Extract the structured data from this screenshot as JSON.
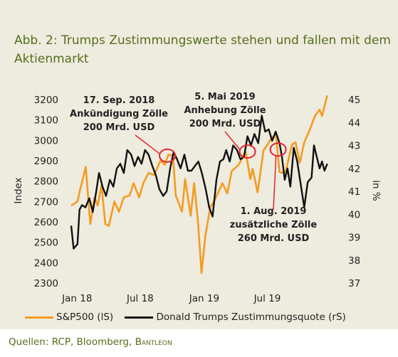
{
  "title": "Abb. 2: Trumps Zustimmungswerte stehen und fallen mit dem Aktienmarkt",
  "source_prefix": "Quellen: RCP, Bloomberg, ",
  "source_brand": "Bantleon",
  "colors": {
    "sp500": "#f39c1f",
    "approval": "#111111",
    "circle": "#e3262f",
    "title": "#566f1a",
    "panel": "#eeebdf"
  },
  "chart_data": {
    "type": "line",
    "left_axis": {
      "label": "Index",
      "ylim": [
        2300,
        3200
      ],
      "ticks": [
        "3200",
        "3100",
        "3000",
        "2900",
        "2800",
        "2700",
        "2600",
        "2500",
        "2400",
        "2300"
      ]
    },
    "right_axis": {
      "label": "in %",
      "ylim": [
        37,
        45
      ],
      "ticks": [
        "45",
        "44",
        "43",
        "42",
        "41",
        "40",
        "39",
        "38",
        "37"
      ]
    },
    "x_ticks": [
      {
        "date": "2018-01-01",
        "label": "Jan 18"
      },
      {
        "date": "2018-07-01",
        "label": "Jul 18"
      },
      {
        "date": "2019-01-01",
        "label": "Jan 19"
      },
      {
        "date": "2019-07-01",
        "label": "Jul 19"
      }
    ],
    "xlim": [
      "2017-12-15",
      "2019-12-31"
    ],
    "series": [
      {
        "name": "S&P500 (lS)",
        "axis": "left",
        "color": "#f39c1f",
        "points": [
          [
            "2017-12-15",
            2680
          ],
          [
            "2018-01-02",
            2700
          ],
          [
            "2018-01-10",
            2760
          ],
          [
            "2018-01-26",
            2870
          ],
          [
            "2018-02-05",
            2650
          ],
          [
            "2018-02-08",
            2590
          ],
          [
            "2018-02-20",
            2720
          ],
          [
            "2018-03-01",
            2680
          ],
          [
            "2018-03-12",
            2780
          ],
          [
            "2018-03-23",
            2590
          ],
          [
            "2018-04-02",
            2580
          ],
          [
            "2018-04-18",
            2700
          ],
          [
            "2018-05-01",
            2650
          ],
          [
            "2018-05-15",
            2720
          ],
          [
            "2018-06-01",
            2730
          ],
          [
            "2018-06-12",
            2790
          ],
          [
            "2018-06-28",
            2720
          ],
          [
            "2018-07-10",
            2790
          ],
          [
            "2018-07-25",
            2840
          ],
          [
            "2018-08-10",
            2830
          ],
          [
            "2018-08-28",
            2900
          ],
          [
            "2018-09-10",
            2880
          ],
          [
            "2018-09-20",
            2930
          ],
          [
            "2018-10-03",
            2925
          ],
          [
            "2018-10-11",
            2730
          ],
          [
            "2018-10-29",
            2650
          ],
          [
            "2018-11-07",
            2810
          ],
          [
            "2018-11-23",
            2630
          ],
          [
            "2018-12-03",
            2790
          ],
          [
            "2018-12-14",
            2600
          ],
          [
            "2018-12-24",
            2350
          ],
          [
            "2019-01-04",
            2530
          ],
          [
            "2019-01-18",
            2670
          ],
          [
            "2019-02-01",
            2710
          ],
          [
            "2019-02-22",
            2790
          ],
          [
            "2019-03-08",
            2740
          ],
          [
            "2019-03-21",
            2850
          ],
          [
            "2019-04-10",
            2880
          ],
          [
            "2019-04-30",
            2945
          ],
          [
            "2019-05-13",
            2810
          ],
          [
            "2019-05-20",
            2860
          ],
          [
            "2019-06-03",
            2745
          ],
          [
            "2019-06-20",
            2950
          ],
          [
            "2019-07-15",
            3015
          ],
          [
            "2019-07-26",
            3025
          ],
          [
            "2019-08-05",
            2845
          ],
          [
            "2019-08-14",
            2840
          ],
          [
            "2019-08-23",
            2850
          ],
          [
            "2019-09-10",
            2980
          ],
          [
            "2019-09-20",
            2990
          ],
          [
            "2019-10-02",
            2890
          ],
          [
            "2019-10-15",
            2990
          ],
          [
            "2019-10-28",
            3040
          ],
          [
            "2019-11-15",
            3120
          ],
          [
            "2019-11-28",
            3150
          ],
          [
            "2019-12-05",
            3120
          ],
          [
            "2019-12-20",
            3220
          ]
        ]
      },
      {
        "name": "Donald Trumps Zustimmungsquote (rS)",
        "axis": "right",
        "color": "#111111",
        "points": [
          [
            "2017-12-15",
            39.5
          ],
          [
            "2017-12-22",
            38.5
          ],
          [
            "2018-01-02",
            38.7
          ],
          [
            "2018-01-08",
            40.2
          ],
          [
            "2018-01-15",
            40.4
          ],
          [
            "2018-01-25",
            40.3
          ],
          [
            "2018-02-05",
            40.7
          ],
          [
            "2018-02-15",
            40.1
          ],
          [
            "2018-02-25",
            41.0
          ],
          [
            "2018-03-05",
            41.8
          ],
          [
            "2018-03-15",
            41.2
          ],
          [
            "2018-03-25",
            40.8
          ],
          [
            "2018-04-05",
            41.5
          ],
          [
            "2018-04-15",
            41.2
          ],
          [
            "2018-04-25",
            42.0
          ],
          [
            "2018-05-05",
            42.2
          ],
          [
            "2018-05-15",
            41.8
          ],
          [
            "2018-05-25",
            42.8
          ],
          [
            "2018-06-05",
            42.6
          ],
          [
            "2018-06-15",
            42.1
          ],
          [
            "2018-06-25",
            42.5
          ],
          [
            "2018-07-05",
            42.2
          ],
          [
            "2018-07-15",
            42.8
          ],
          [
            "2018-07-25",
            42.6
          ],
          [
            "2018-08-05",
            42.1
          ],
          [
            "2018-08-15",
            41.7
          ],
          [
            "2018-08-25",
            41.1
          ],
          [
            "2018-09-05",
            40.8
          ],
          [
            "2018-09-15",
            41.0
          ],
          [
            "2018-09-25",
            42.0
          ],
          [
            "2018-10-05",
            42.7
          ],
          [
            "2018-10-15",
            42.4
          ],
          [
            "2018-10-25",
            42.0
          ],
          [
            "2018-11-05",
            42.6
          ],
          [
            "2018-11-15",
            41.9
          ],
          [
            "2018-11-25",
            41.9
          ],
          [
            "2018-12-05",
            42.1
          ],
          [
            "2018-12-15",
            42.3
          ],
          [
            "2018-12-25",
            41.8
          ],
          [
            "2019-01-05",
            41.1
          ],
          [
            "2019-01-15",
            40.3
          ],
          [
            "2019-01-25",
            39.9
          ],
          [
            "2019-02-05",
            41.5
          ],
          [
            "2019-02-15",
            42.3
          ],
          [
            "2019-02-25",
            42.4
          ],
          [
            "2019-03-05",
            42.8
          ],
          [
            "2019-03-15",
            42.3
          ],
          [
            "2019-03-25",
            43.0
          ],
          [
            "2019-04-05",
            42.8
          ],
          [
            "2019-04-15",
            42.4
          ],
          [
            "2019-04-25",
            42.5
          ],
          [
            "2019-05-05",
            43.4
          ],
          [
            "2019-05-15",
            43.0
          ],
          [
            "2019-05-25",
            43.5
          ],
          [
            "2019-06-05",
            43.1
          ],
          [
            "2019-06-15",
            44.3
          ],
          [
            "2019-06-25",
            43.6
          ],
          [
            "2019-07-05",
            43.7
          ],
          [
            "2019-07-15",
            43.2
          ],
          [
            "2019-07-25",
            43.6
          ],
          [
            "2019-08-05",
            43.1
          ],
          [
            "2019-08-12",
            42.5
          ],
          [
            "2019-08-20",
            41.5
          ],
          [
            "2019-08-28",
            42.0
          ],
          [
            "2019-09-05",
            41.2
          ],
          [
            "2019-09-15",
            42.9
          ],
          [
            "2019-09-25",
            42.3
          ],
          [
            "2019-10-05",
            41.3
          ],
          [
            "2019-10-15",
            40.3
          ],
          [
            "2019-10-25",
            41.4
          ],
          [
            "2019-11-05",
            41.6
          ],
          [
            "2019-11-12",
            43.0
          ],
          [
            "2019-11-20",
            42.5
          ],
          [
            "2019-11-28",
            42.0
          ],
          [
            "2019-12-05",
            42.3
          ],
          [
            "2019-12-12",
            41.9
          ],
          [
            "2019-12-20",
            42.2
          ]
        ]
      }
    ],
    "annotations": [
      {
        "lines": [
          "17. Sep. 2018",
          "Ankündigung Zölle",
          "200 Mrd. USD"
        ],
        "date": "2018-09-17",
        "value": 2925,
        "axis": "left"
      },
      {
        "lines": [
          "5. Mai 2019",
          "Anhebung Zölle",
          "200 Mrd. USD"
        ],
        "date": "2019-05-05",
        "value": 2945,
        "axis": "left"
      },
      {
        "lines": [
          "1. Aug. 2019",
          "zusätzliche Zölle",
          "260 Mrd. USD"
        ],
        "date": "2019-08-01",
        "value": 2955,
        "axis": "left"
      }
    ],
    "grid": false,
    "legend_position": "bottom"
  }
}
